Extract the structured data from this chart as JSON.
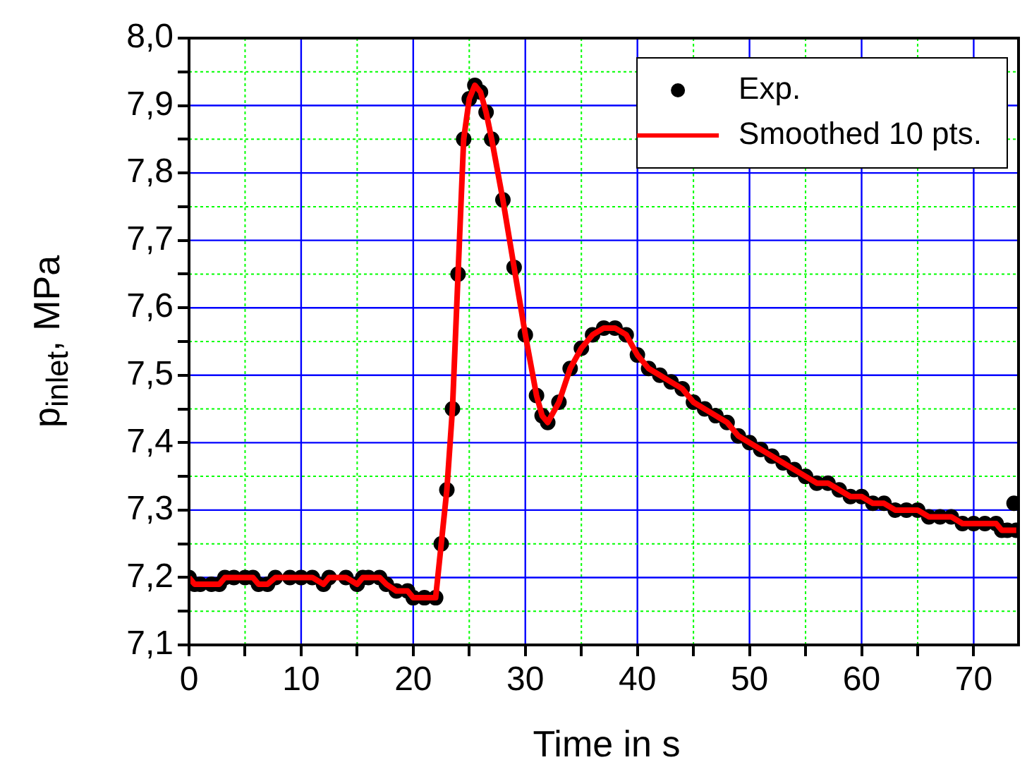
{
  "chart_data": {
    "type": "scatter",
    "xlabel": "Time in s",
    "ylabel": "p$_{inlet}$, MPa",
    "xlim": [
      0,
      74
    ],
    "xticks": [
      0,
      {
        "value": 5,
        "label": null
      },
      10,
      {
        "value": 15,
        "label": null
      },
      20,
      {
        "value": 25,
        "label": null
      },
      30,
      {
        "value": 35,
        "label": null
      },
      40,
      {
        "value": 45,
        "label": null
      },
      50,
      {
        "value": 55,
        "label": null
      },
      60,
      {
        "value": 65,
        "label": null
      },
      70
    ],
    "ylim": [
      7.1,
      8.0
    ],
    "yticks": [
      {
        "value": 7.1,
        "label": "7,1"
      },
      {
        "value": 7.15,
        "label": null
      },
      {
        "value": 7.2,
        "label": "7,2"
      },
      {
        "value": 7.25,
        "label": null
      },
      {
        "value": 7.3,
        "label": "7,3"
      },
      {
        "value": 7.35,
        "label": null
      },
      {
        "value": 7.4,
        "label": "7,4"
      },
      {
        "value": 7.45,
        "label": null
      },
      {
        "value": 7.5,
        "label": "7,5"
      },
      {
        "value": 7.55,
        "label": null
      },
      {
        "value": 7.6,
        "label": "7,6"
      },
      {
        "value": 7.65,
        "label": null
      },
      {
        "value": 7.7,
        "label": "7,7"
      },
      {
        "value": 7.75,
        "label": null
      },
      {
        "value": 7.8,
        "label": "7,8"
      },
      {
        "value": 7.85,
        "label": null
      },
      {
        "value": 7.9,
        "label": "7,9"
      },
      {
        "value": 7.95,
        "label": null
      },
      {
        "value": 8.0,
        "label": "8,0"
      }
    ],
    "grid": true,
    "legend": "top right",
    "series": [
      {
        "name": "Exp.",
        "type": "scatter",
        "marker": "circle",
        "color": "#000000",
        "x": [
          0,
          0.5,
          1,
          2,
          2.7,
          3.2,
          4,
          5,
          5.7,
          6.2,
          7,
          7.7,
          9,
          10,
          11,
          12,
          12.5,
          14,
          15,
          15.5,
          16,
          17,
          17.6,
          18.5,
          19.5,
          20,
          21,
          22,
          22.5,
          23,
          23.5,
          24,
          24.5,
          25,
          25.5,
          26,
          26.5,
          27,
          28,
          29,
          30,
          31,
          31.5,
          32,
          33,
          34,
          35,
          36,
          37,
          38,
          39,
          40,
          41,
          42,
          43,
          44,
          45,
          46,
          47,
          48,
          49,
          50,
          51,
          52,
          53,
          54,
          55,
          56,
          57,
          58,
          59,
          60,
          61,
          62,
          63,
          64,
          65,
          66,
          67,
          68,
          69,
          70,
          71,
          72,
          72.5,
          73,
          73.6,
          73.8
        ],
        "values": [
          7.2,
          7.19,
          7.19,
          7.19,
          7.19,
          7.2,
          7.2,
          7.2,
          7.2,
          7.19,
          7.19,
          7.2,
          7.2,
          7.2,
          7.2,
          7.19,
          7.2,
          7.2,
          7.19,
          7.2,
          7.2,
          7.2,
          7.19,
          7.18,
          7.18,
          7.17,
          7.17,
          7.17,
          7.25,
          7.33,
          7.45,
          7.65,
          7.85,
          7.91,
          7.93,
          7.92,
          7.89,
          7.85,
          7.76,
          7.66,
          7.56,
          7.47,
          7.44,
          7.43,
          7.46,
          7.51,
          7.54,
          7.56,
          7.57,
          7.57,
          7.56,
          7.53,
          7.51,
          7.5,
          7.49,
          7.48,
          7.46,
          7.45,
          7.44,
          7.43,
          7.41,
          7.4,
          7.39,
          7.38,
          7.37,
          7.36,
          7.35,
          7.34,
          7.34,
          7.33,
          7.32,
          7.32,
          7.31,
          7.31,
          7.3,
          7.3,
          7.3,
          7.29,
          7.29,
          7.29,
          7.28,
          7.28,
          7.28,
          7.28,
          7.27,
          7.27,
          7.31,
          7.27
        ]
      },
      {
        "name": "Smoothed 10 pts.",
        "type": "line",
        "marker": "none",
        "line_style": "solid",
        "color": "#ff0000",
        "x": [
          0,
          0.5,
          1,
          2,
          2.7,
          3.2,
          4,
          5,
          5.7,
          6.2,
          7,
          7.7,
          9,
          10,
          11,
          12,
          12.5,
          14,
          15,
          15.5,
          16,
          17,
          17.6,
          18.5,
          19.5,
          20,
          21,
          22,
          22.5,
          23,
          23.5,
          24,
          24.5,
          25,
          25.5,
          26,
          26.5,
          27,
          28,
          29,
          30,
          31,
          31.5,
          32,
          33,
          34,
          35,
          36,
          37,
          38,
          39,
          40,
          41,
          42,
          43,
          44,
          45,
          46,
          47,
          48,
          49,
          50,
          51,
          52,
          53,
          54,
          55,
          56,
          57,
          58,
          59,
          60,
          61,
          62,
          63,
          64,
          65,
          66,
          67,
          68,
          69,
          70,
          71,
          72,
          72.5,
          73,
          73.8
        ],
        "values": [
          7.2,
          7.19,
          7.19,
          7.19,
          7.19,
          7.2,
          7.2,
          7.2,
          7.2,
          7.19,
          7.19,
          7.2,
          7.2,
          7.2,
          7.2,
          7.19,
          7.2,
          7.2,
          7.19,
          7.2,
          7.2,
          7.2,
          7.19,
          7.18,
          7.18,
          7.17,
          7.17,
          7.17,
          7.25,
          7.33,
          7.45,
          7.65,
          7.85,
          7.91,
          7.93,
          7.92,
          7.89,
          7.85,
          7.76,
          7.66,
          7.56,
          7.47,
          7.44,
          7.43,
          7.46,
          7.51,
          7.54,
          7.56,
          7.57,
          7.57,
          7.56,
          7.53,
          7.51,
          7.5,
          7.49,
          7.48,
          7.46,
          7.45,
          7.44,
          7.43,
          7.41,
          7.4,
          7.39,
          7.38,
          7.37,
          7.36,
          7.35,
          7.34,
          7.34,
          7.33,
          7.32,
          7.32,
          7.31,
          7.31,
          7.3,
          7.3,
          7.3,
          7.29,
          7.29,
          7.29,
          7.28,
          7.28,
          7.28,
          7.28,
          7.27,
          7.27,
          7.27
        ]
      }
    ]
  }
}
